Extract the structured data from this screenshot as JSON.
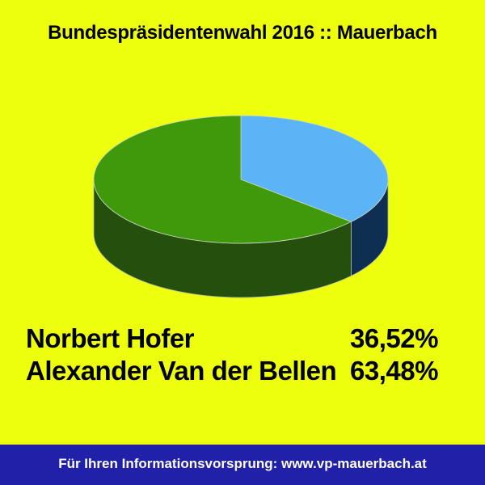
{
  "title": "Bundespräsidentenwahl 2016 :: Mauerbach",
  "chart_data": {
    "type": "pie",
    "title": "Bundespräsidentenwahl 2016 :: Mauerbach",
    "categories": [
      "Norbert Hofer",
      "Alexander Van der Bellen"
    ],
    "values": [
      36.52,
      63.48
    ],
    "value_labels": [
      "36,52%",
      "63,48%"
    ],
    "colors": [
      "#5ab4f5",
      "#3f990a"
    ],
    "side_colors": [
      "#0f2f52",
      "#254f0c"
    ],
    "legend": "below",
    "style": "3d"
  },
  "results": [
    {
      "name": "Norbert Hofer",
      "pct": "36,52%"
    },
    {
      "name": "Alexander Van der Bellen",
      "pct": "63,48%"
    }
  ],
  "footer": {
    "text": "Für Ihren Informationsvorsprung: www.vp-mauerbach.at",
    "background": "#2020a8"
  }
}
